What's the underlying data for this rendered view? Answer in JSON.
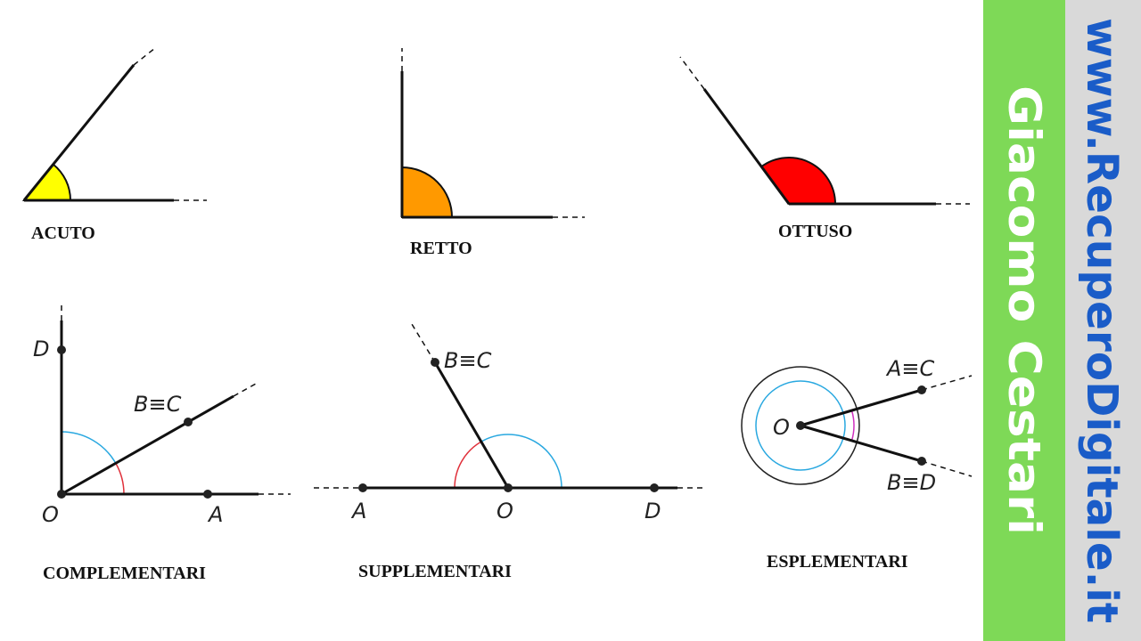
{
  "angles": [
    {
      "label": "ACUTO"
    },
    {
      "label": "RETTO"
    },
    {
      "label": "OTTUSO"
    }
  ],
  "pairs": [
    {
      "label": "COMPLEMENTARI",
      "points": [
        "D",
        "B≡C",
        "O",
        "A"
      ]
    },
    {
      "label": "SUPPLEMENTARI",
      "points": [
        "B≡C",
        "A",
        "O",
        "D"
      ]
    },
    {
      "label": "ESPLEMENTARI",
      "points": [
        "O",
        "A≡C",
        "B≡D"
      ]
    }
  ],
  "sidebar": {
    "author": "Giacomo Cestari",
    "website": "www.RecuperoDigitale.it"
  }
}
